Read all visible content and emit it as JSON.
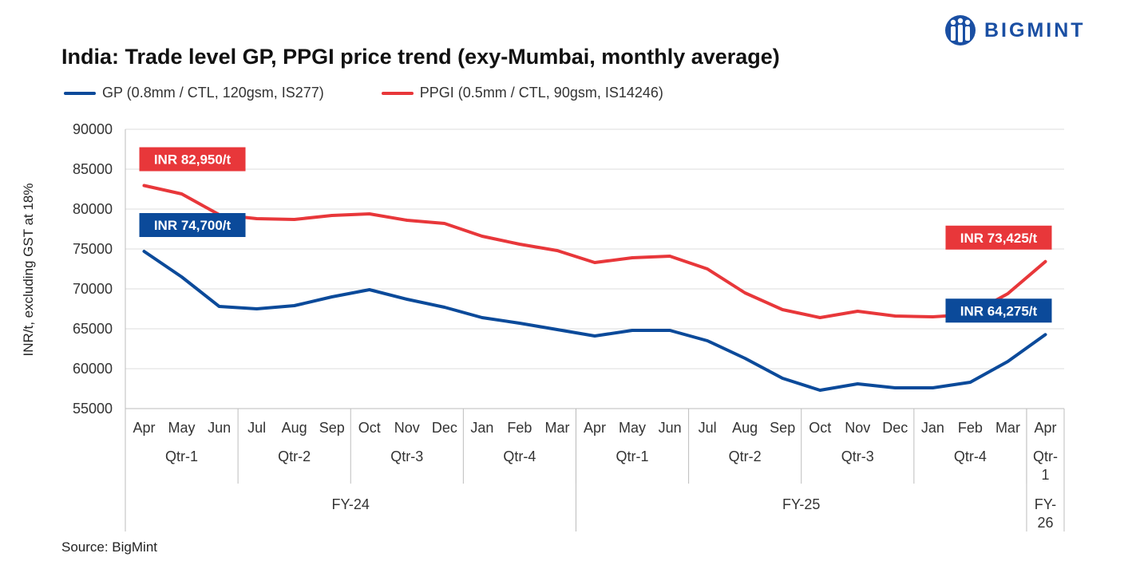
{
  "title": "India: Trade level GP, PPGI price trend (exy-Mumbai, monthly average)",
  "brand": {
    "name": "BIGMINT",
    "color": "#1a4fa3",
    "icon": "bigmint-logo-icon"
  },
  "source": "Source: BigMint",
  "chart_data": {
    "type": "line",
    "ylabel": "INR/t, excluding GST at 18%",
    "ylim": [
      55000,
      90000
    ],
    "yticks": [
      "55000",
      "60000",
      "65000",
      "70000",
      "75000",
      "80000",
      "85000",
      "90000"
    ],
    "grid": true,
    "legend_position": "top-left",
    "categories": [
      "Apr",
      "May",
      "Jun",
      "Jul",
      "Aug",
      "Sep",
      "Oct",
      "Nov",
      "Dec",
      "Jan",
      "Feb",
      "Mar",
      "Apr",
      "May",
      "Jun",
      "Jul",
      "Aug",
      "Sep",
      "Oct",
      "Nov",
      "Dec",
      "Jan",
      "Feb",
      "Mar",
      "Apr"
    ],
    "quarters": [
      {
        "label": "Qtr-1",
        "span": 3
      },
      {
        "label": "Qtr-2",
        "span": 3
      },
      {
        "label": "Qtr-3",
        "span": 3
      },
      {
        "label": "Qtr-4",
        "span": 3
      },
      {
        "label": "Qtr-1",
        "span": 3
      },
      {
        "label": "Qtr-2",
        "span": 3
      },
      {
        "label": "Qtr-3",
        "span": 3
      },
      {
        "label": "Qtr-4",
        "span": 3
      },
      {
        "label": "Qtr-1",
        "span": 1
      }
    ],
    "fiscal_years": [
      {
        "label": "FY-24",
        "span": 12
      },
      {
        "label": "FY-25",
        "span": 12
      },
      {
        "label": "FY-26",
        "span": 1
      }
    ],
    "series": [
      {
        "name": "GP (0.8mm / CTL, 120gsm, IS277)",
        "color": "#0b4a9a",
        "values": [
          74700,
          71500,
          67800,
          67500,
          67900,
          69000,
          69900,
          68700,
          67700,
          66400,
          65700,
          64900,
          64100,
          64800,
          64800,
          63500,
          61300,
          58800,
          57300,
          58100,
          57600,
          57600,
          58300,
          60900,
          64275
        ],
        "labels": [
          {
            "index": 0,
            "text": "INR 74,700/t"
          },
          {
            "index": 24,
            "text": "INR 64,275/t"
          }
        ]
      },
      {
        "name": "PPGI (0.5mm / CTL, 90gsm, IS14246)",
        "color": "#e8373a",
        "values": [
          82950,
          81900,
          79300,
          78800,
          78700,
          79200,
          79400,
          78600,
          78200,
          76600,
          75600,
          74800,
          73300,
          73900,
          74100,
          72500,
          69500,
          67400,
          66400,
          67200,
          66600,
          66500,
          66800,
          69400,
          73425
        ],
        "labels": [
          {
            "index": 0,
            "text": "INR 82,950/t"
          },
          {
            "index": 24,
            "text": "INR 73,425/t"
          }
        ]
      }
    ]
  }
}
